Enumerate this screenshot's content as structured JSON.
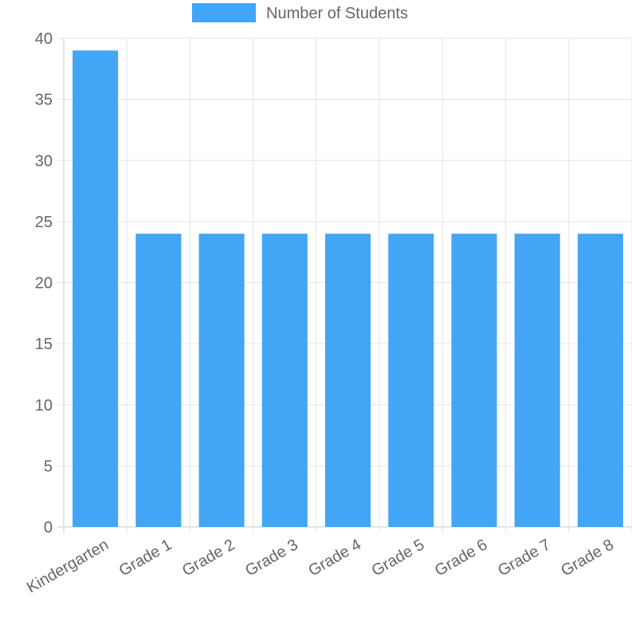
{
  "chart_data": {
    "type": "bar",
    "categories": [
      "Kindergarten",
      "Grade 1",
      "Grade 2",
      "Grade 3",
      "Grade 4",
      "Grade 5",
      "Grade 6",
      "Grade 7",
      "Grade 8"
    ],
    "series": [
      {
        "name": "Number of Students",
        "values": [
          39,
          24,
          24,
          24,
          24,
          24,
          24,
          24,
          24
        ],
        "color": "#42a5f5"
      }
    ],
    "title": "",
    "xlabel": "",
    "ylabel": "",
    "ylim": [
      0,
      40
    ],
    "yticks": [
      0,
      5,
      10,
      15,
      20,
      25,
      30,
      35,
      40
    ],
    "grid": true,
    "legend": "top-center"
  }
}
